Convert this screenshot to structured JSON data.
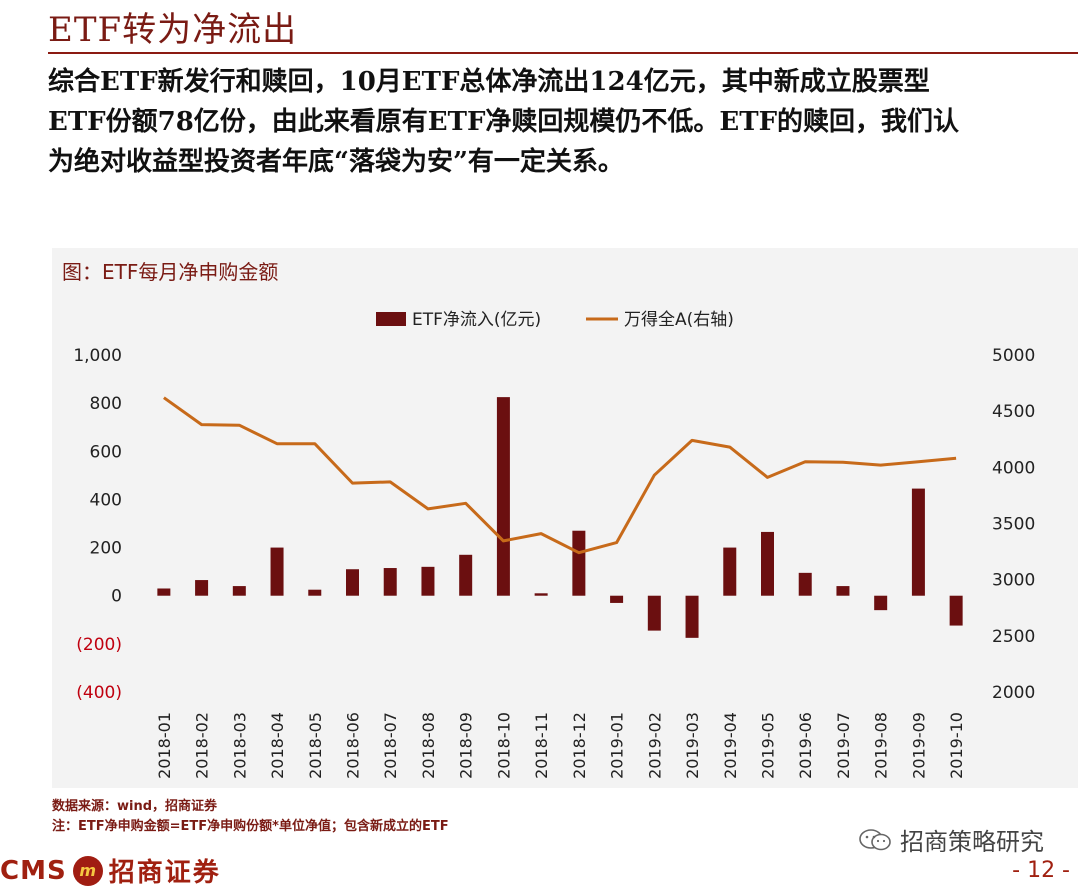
{
  "page": {
    "title": "ETF转为净流出",
    "paragraph_lines": [
      "综合ETF新发行和赎回，10月ETF总体净流出124亿元，其中新成立股票型",
      "ETF份额78亿份，由此来看原有ETF净赎回规模仍不低。ETF的赎回，我们认",
      "为绝对收益型投资者年底“落袋为安”有一定关系。"
    ],
    "source": "数据来源：wind，招商证券",
    "note": "注：ETF净申购金额=ETF净申购份额*单位净值；包含新成立的ETF",
    "wechat_label": "招商策略研究",
    "brand_en": "CMS",
    "brand_logo_text": "m",
    "brand_cn": "招商证券",
    "page_number": "- 12 -"
  },
  "colors": {
    "bar": "#6b0f10",
    "line": "#c76a1a",
    "negative_tick": "#c0000f",
    "title": "#7a1b14"
  },
  "chart_data": {
    "type": "bar",
    "title": "图：ETF每月净申购金额",
    "categories": [
      "2018-01",
      "2018-02",
      "2018-03",
      "2018-04",
      "2018-05",
      "2018-06",
      "2018-07",
      "2018-08",
      "2018-09",
      "2018-10",
      "2018-11",
      "2018-12",
      "2019-01",
      "2019-02",
      "2019-03",
      "2019-04",
      "2019-05",
      "2019-06",
      "2019-07",
      "2019-08",
      "2019-09",
      "2019-10"
    ],
    "series": [
      {
        "name": "ETF净流入(亿元)",
        "type": "bar",
        "axis": "left",
        "values": [
          30,
          65,
          40,
          200,
          25,
          110,
          115,
          120,
          170,
          825,
          10,
          270,
          -30,
          -145,
          -175,
          200,
          265,
          95,
          40,
          -60,
          445,
          -124
        ]
      },
      {
        "name": "万得全A(右轴)",
        "type": "line",
        "axis": "right",
        "values": [
          4620,
          4380,
          4375,
          4210,
          4210,
          3860,
          3870,
          3630,
          3680,
          3345,
          3410,
          3240,
          3330,
          3930,
          4240,
          4180,
          3910,
          4050,
          4045,
          4020,
          4050,
          4080
        ]
      }
    ],
    "y_left": {
      "range": [
        -400,
        1000
      ],
      "ticks": [
        1000,
        800,
        600,
        400,
        200,
        0,
        -200,
        -400
      ],
      "tick_labels": [
        "1,000",
        "800",
        "600",
        "400",
        "200",
        "0",
        "(200)",
        "(400)"
      ]
    },
    "y_right": {
      "range": [
        2000,
        5000
      ],
      "ticks": [
        5000,
        4500,
        4000,
        3500,
        3000,
        2500,
        2000
      ],
      "tick_labels": [
        "5000",
        "4500",
        "4000",
        "3500",
        "3000",
        "2500",
        "2000"
      ]
    },
    "grid": false,
    "legend_position": "top-center"
  }
}
